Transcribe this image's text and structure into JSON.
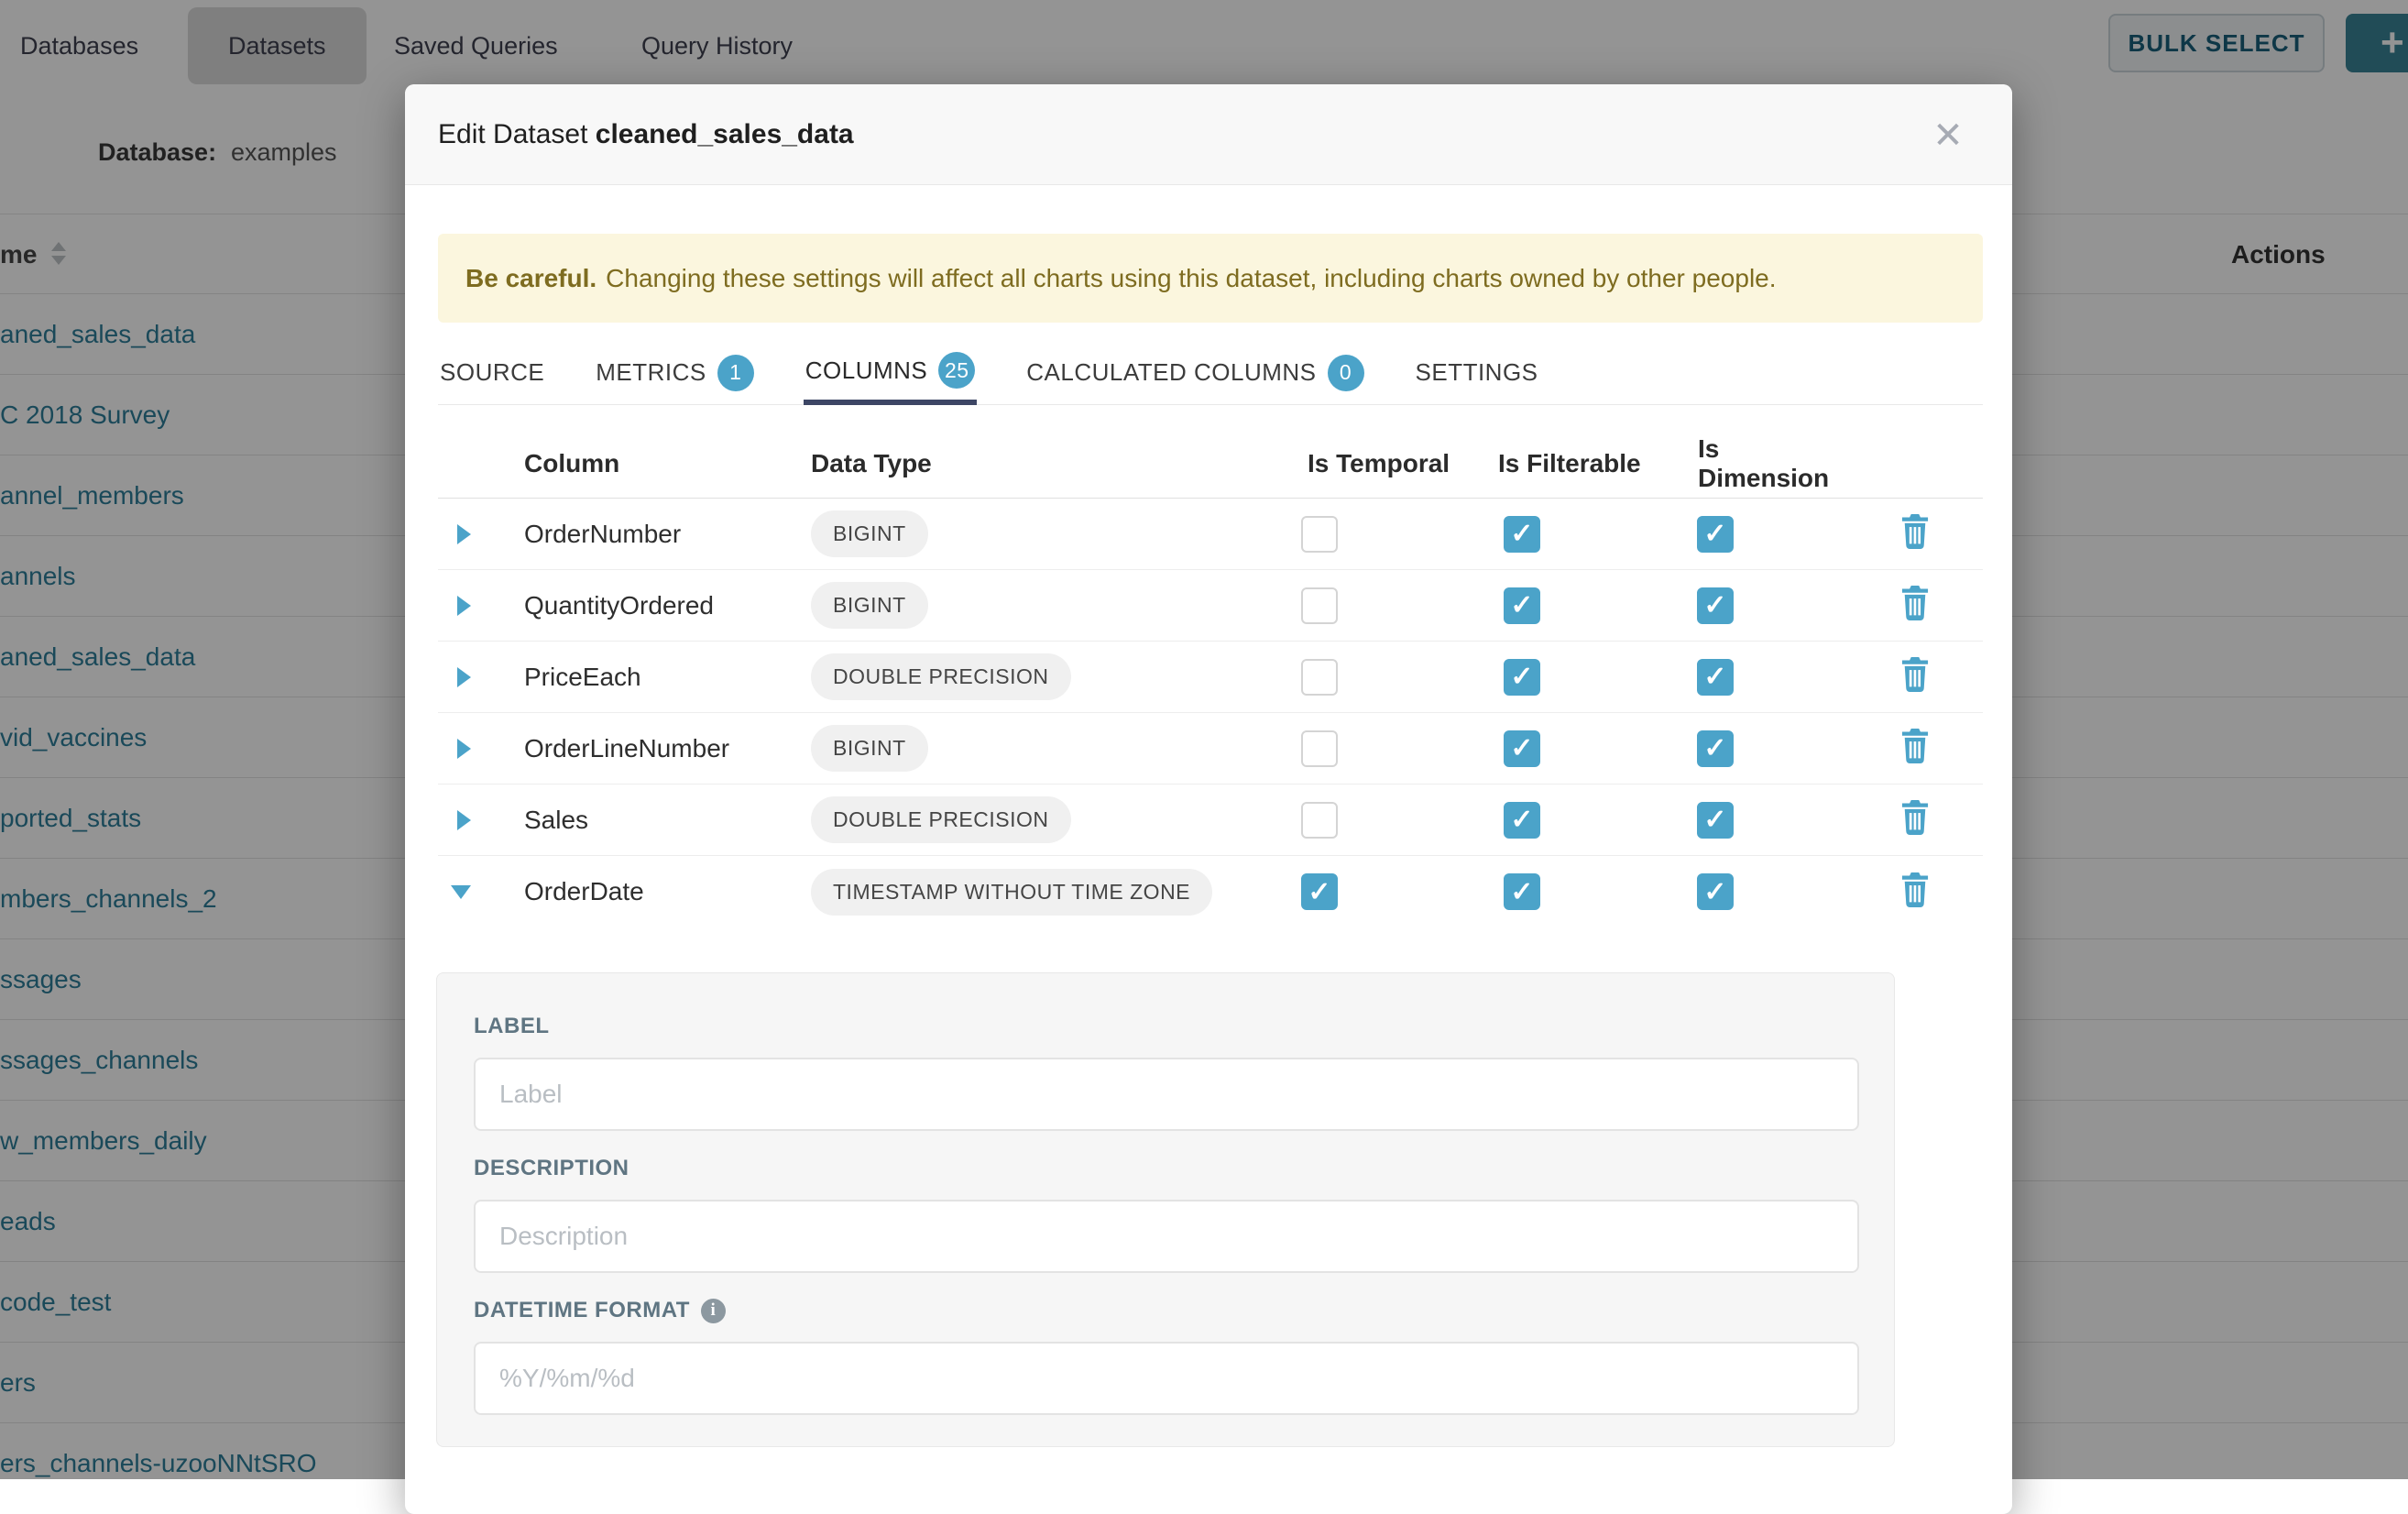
{
  "page": {
    "nav": {
      "items": [
        {
          "label": "Databases",
          "active": false
        },
        {
          "label": "Datasets",
          "active": true
        },
        {
          "label": "Saved Queries",
          "active": false
        },
        {
          "label": "Query History",
          "active": false
        }
      ],
      "bulk_select_label": "BULK SELECT",
      "plus_label": "+"
    },
    "filter_bar": {
      "database_label": "Database:",
      "database_value": "examples"
    },
    "list": {
      "name_header_partial": "me",
      "actions_header": "Actions",
      "rows": [
        "aned_sales_data",
        "C 2018 Survey",
        "annel_members",
        "annels",
        "aned_sales_data",
        "vid_vaccines",
        "ported_stats",
        "mbers_channels_2",
        "ssages",
        "ssages_channels",
        "w_members_daily",
        "eads",
        "code_test",
        "ers",
        "ers_channels-uzooNNtSRO"
      ]
    }
  },
  "modal": {
    "title_prefix": "Edit Dataset",
    "title_name": "cleaned_sales_data",
    "close_glyph": "✕",
    "warning": {
      "bold": "Be careful.",
      "text": "Changing these settings will affect all charts using this dataset, including charts owned by other people."
    },
    "tabs": [
      {
        "label": "SOURCE",
        "badge": null,
        "active": false
      },
      {
        "label": "METRICS",
        "badge": "1",
        "active": false
      },
      {
        "label": "COLUMNS",
        "badge": "25",
        "active": true
      },
      {
        "label": "CALCULATED COLUMNS",
        "badge": "0",
        "active": false
      },
      {
        "label": "SETTINGS",
        "badge": null,
        "active": false
      }
    ],
    "table": {
      "headers": [
        "Column",
        "Data Type",
        "Is Temporal",
        "Is Filterable",
        "Is Dimension"
      ],
      "rows": [
        {
          "name": "OrderNumber",
          "type": "BIGINT",
          "temporal": false,
          "filterable": true,
          "dimension": true,
          "expanded": false
        },
        {
          "name": "QuantityOrdered",
          "type": "BIGINT",
          "temporal": false,
          "filterable": true,
          "dimension": true,
          "expanded": false
        },
        {
          "name": "PriceEach",
          "type": "DOUBLE PRECISION",
          "temporal": false,
          "filterable": true,
          "dimension": true,
          "expanded": false
        },
        {
          "name": "OrderLineNumber",
          "type": "BIGINT",
          "temporal": false,
          "filterable": true,
          "dimension": true,
          "expanded": false
        },
        {
          "name": "Sales",
          "type": "DOUBLE PRECISION",
          "temporal": false,
          "filterable": true,
          "dimension": true,
          "expanded": false
        },
        {
          "name": "OrderDate",
          "type": "TIMESTAMP WITHOUT TIME ZONE",
          "temporal": true,
          "filterable": true,
          "dimension": true,
          "expanded": true
        }
      ]
    },
    "editor": {
      "label_title": "LABEL",
      "label_placeholder": "Label",
      "description_title": "DESCRIPTION",
      "description_placeholder": "Description",
      "datetime_title": "DATETIME FORMAT",
      "datetime_placeholder": "%Y/%m/%d",
      "info_glyph": "i"
    }
  },
  "colors": {
    "accent": "#4BA3C9",
    "tab_underline": "#3D4665",
    "warning_bg": "#FBF6DE",
    "warning_text": "#7E6C20",
    "link": "#2D7E9A",
    "plus_button": "#3A8496"
  }
}
